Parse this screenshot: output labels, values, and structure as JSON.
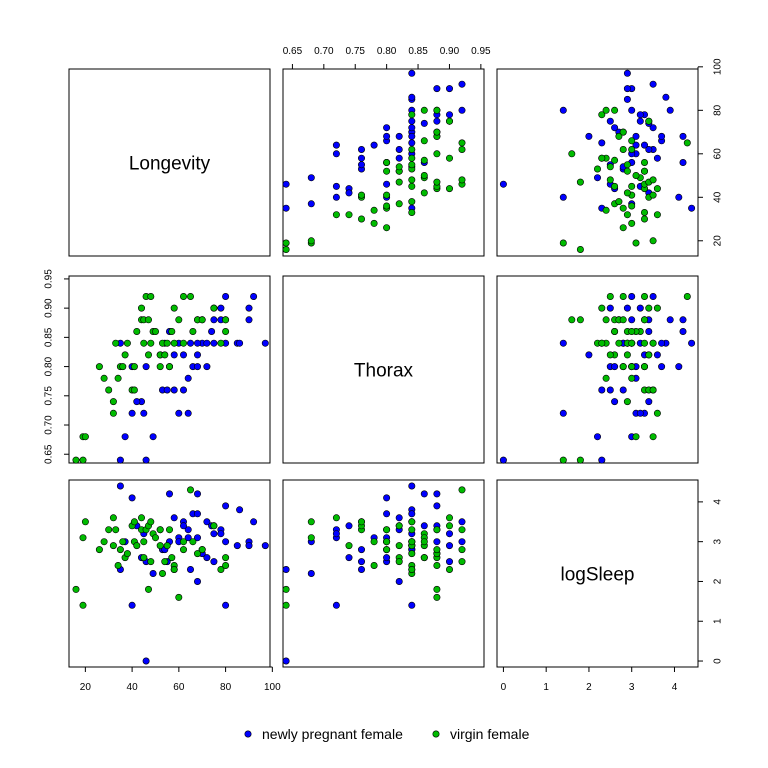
{
  "chart_data": {
    "type": "scatter",
    "variables": [
      "Longevity",
      "Thorax",
      "logSleep"
    ],
    "axes": {
      "Longevity": {
        "range": [
          13,
          99
        ],
        "ticks": [
          20,
          40,
          60,
          80,
          100
        ],
        "tick_labels": [
          "20",
          "40",
          "60",
          "80",
          "100"
        ]
      },
      "Thorax": {
        "range": [
          0.635,
          0.955
        ],
        "ticks": [
          0.65,
          0.7,
          0.75,
          0.8,
          0.85,
          0.9,
          0.95
        ],
        "tick_labels": [
          "0.65",
          "0.70",
          "0.75",
          "0.80",
          "0.85",
          "0.90",
          "0.95"
        ]
      },
      "logSleep": {
        "range": [
          -0.15,
          4.55
        ],
        "ticks": [
          0,
          1,
          2,
          3,
          4
        ],
        "tick_labels": [
          "0",
          "1",
          "2",
          "3",
          "4"
        ]
      }
    },
    "series": [
      {
        "name": "newly pregnant female",
        "color": "#0000ff",
        "points": [
          [
            35,
            0.64,
            2.3
          ],
          [
            46,
            0.64,
            0.0
          ],
          [
            49,
            0.68,
            2.2
          ],
          [
            60,
            0.72,
            3.1
          ],
          [
            64,
            0.72,
            3.3
          ],
          [
            37,
            0.68,
            3.0
          ],
          [
            40,
            0.72,
            1.4
          ],
          [
            44,
            0.74,
            2.6
          ],
          [
            45,
            0.72,
            3.2
          ],
          [
            42,
            0.74,
            3.4
          ],
          [
            53,
            0.76,
            2.8
          ],
          [
            55,
            0.76,
            2.5
          ],
          [
            58,
            0.76,
            2.3
          ],
          [
            62,
            0.76,
            3.5
          ],
          [
            64,
            0.78,
            3.1
          ],
          [
            40,
            0.8,
            4.1
          ],
          [
            46,
            0.8,
            2.5
          ],
          [
            56,
            0.8,
            3.0
          ],
          [
            66,
            0.8,
            3.7
          ],
          [
            68,
            0.8,
            3.1
          ],
          [
            72,
            0.8,
            2.6
          ],
          [
            52,
            0.82,
            3.3
          ],
          [
            58,
            0.82,
            3.6
          ],
          [
            62,
            0.82,
            3.4
          ],
          [
            68,
            0.82,
            2.0
          ],
          [
            70,
            0.84,
            2.8
          ],
          [
            72,
            0.84,
            3.5
          ],
          [
            75,
            0.84,
            3.2
          ],
          [
            80,
            0.84,
            1.4
          ],
          [
            85,
            0.84,
            2.9
          ],
          [
            86,
            0.84,
            3.8
          ],
          [
            35,
            0.84,
            4.4
          ],
          [
            65,
            0.84,
            2.3
          ],
          [
            68,
            0.84,
            3.7
          ],
          [
            74,
            0.86,
            3.4
          ],
          [
            70,
            0.88,
            2.7
          ],
          [
            78,
            0.88,
            3.3
          ],
          [
            80,
            0.88,
            3.9
          ],
          [
            90,
            0.88,
            3.0
          ],
          [
            68,
            0.88,
            4.2
          ],
          [
            75,
            0.9,
            2.5
          ],
          [
            80,
            0.92,
            3.0
          ],
          [
            92,
            0.92,
            3.5
          ],
          [
            90,
            0.9,
            2.9
          ],
          [
            97,
            0.84,
            2.9
          ],
          [
            75,
            0.88,
            3.4
          ],
          [
            78,
            0.9,
            3.2
          ],
          [
            56,
            0.86,
            4.2
          ],
          [
            54,
            0.84,
            2.8
          ],
          [
            60,
            0.84,
            3.0
          ]
        ]
      },
      {
        "name": "virgin female",
        "color": "#00bb00",
        "points": [
          [
            16,
            0.64,
            1.8
          ],
          [
            19,
            0.64,
            1.4
          ],
          [
            19,
            0.68,
            3.1
          ],
          [
            20,
            0.68,
            3.5
          ],
          [
            26,
            0.8,
            2.8
          ],
          [
            28,
            0.78,
            3.0
          ],
          [
            30,
            0.76,
            3.3
          ],
          [
            32,
            0.72,
            3.6
          ],
          [
            32,
            0.74,
            2.9
          ],
          [
            33,
            0.84,
            3.3
          ],
          [
            34,
            0.78,
            2.4
          ],
          [
            35,
            0.8,
            2.8
          ],
          [
            36,
            0.8,
            3.0
          ],
          [
            37,
            0.82,
            2.6
          ],
          [
            38,
            0.84,
            2.7
          ],
          [
            40,
            0.76,
            3.4
          ],
          [
            41,
            0.8,
            3.0
          ],
          [
            41,
            0.76,
            3.5
          ],
          [
            42,
            0.86,
            2.9
          ],
          [
            44,
            0.88,
            3.3
          ],
          [
            44,
            0.9,
            3.6
          ],
          [
            45,
            0.88,
            2.6
          ],
          [
            45,
            0.84,
            3.0
          ],
          [
            46,
            0.92,
            3.3
          ],
          [
            47,
            0.88,
            1.8
          ],
          [
            47,
            0.82,
            3.4
          ],
          [
            48,
            0.92,
            2.5
          ],
          [
            48,
            0.84,
            3.5
          ],
          [
            49,
            0.86,
            3.2
          ],
          [
            50,
            0.86,
            3.1
          ],
          [
            52,
            0.82,
            2.9
          ],
          [
            53,
            0.84,
            2.2
          ],
          [
            54,
            0.82,
            2.5
          ],
          [
            55,
            0.84,
            2.9
          ],
          [
            56,
            0.8,
            3.3
          ],
          [
            58,
            0.84,
            2.4
          ],
          [
            58,
            0.9,
            2.3
          ],
          [
            60,
            0.88,
            1.6
          ],
          [
            62,
            0.92,
            2.8
          ],
          [
            65,
            0.92,
            4.3
          ],
          [
            66,
            0.86,
            3.0
          ],
          [
            68,
            0.88,
            2.7
          ],
          [
            70,
            0.88,
            2.8
          ],
          [
            75,
            0.9,
            3.4
          ],
          [
            78,
            0.84,
            2.3
          ],
          [
            80,
            0.86,
            2.6
          ],
          [
            80,
            0.88,
            2.4
          ],
          [
            62,
            0.84,
            3.0
          ],
          [
            52,
            0.8,
            3.3
          ],
          [
            57,
            0.86,
            2.6
          ]
        ]
      }
    ],
    "legend": {
      "placement": "bottom-center"
    },
    "grid": false
  }
}
